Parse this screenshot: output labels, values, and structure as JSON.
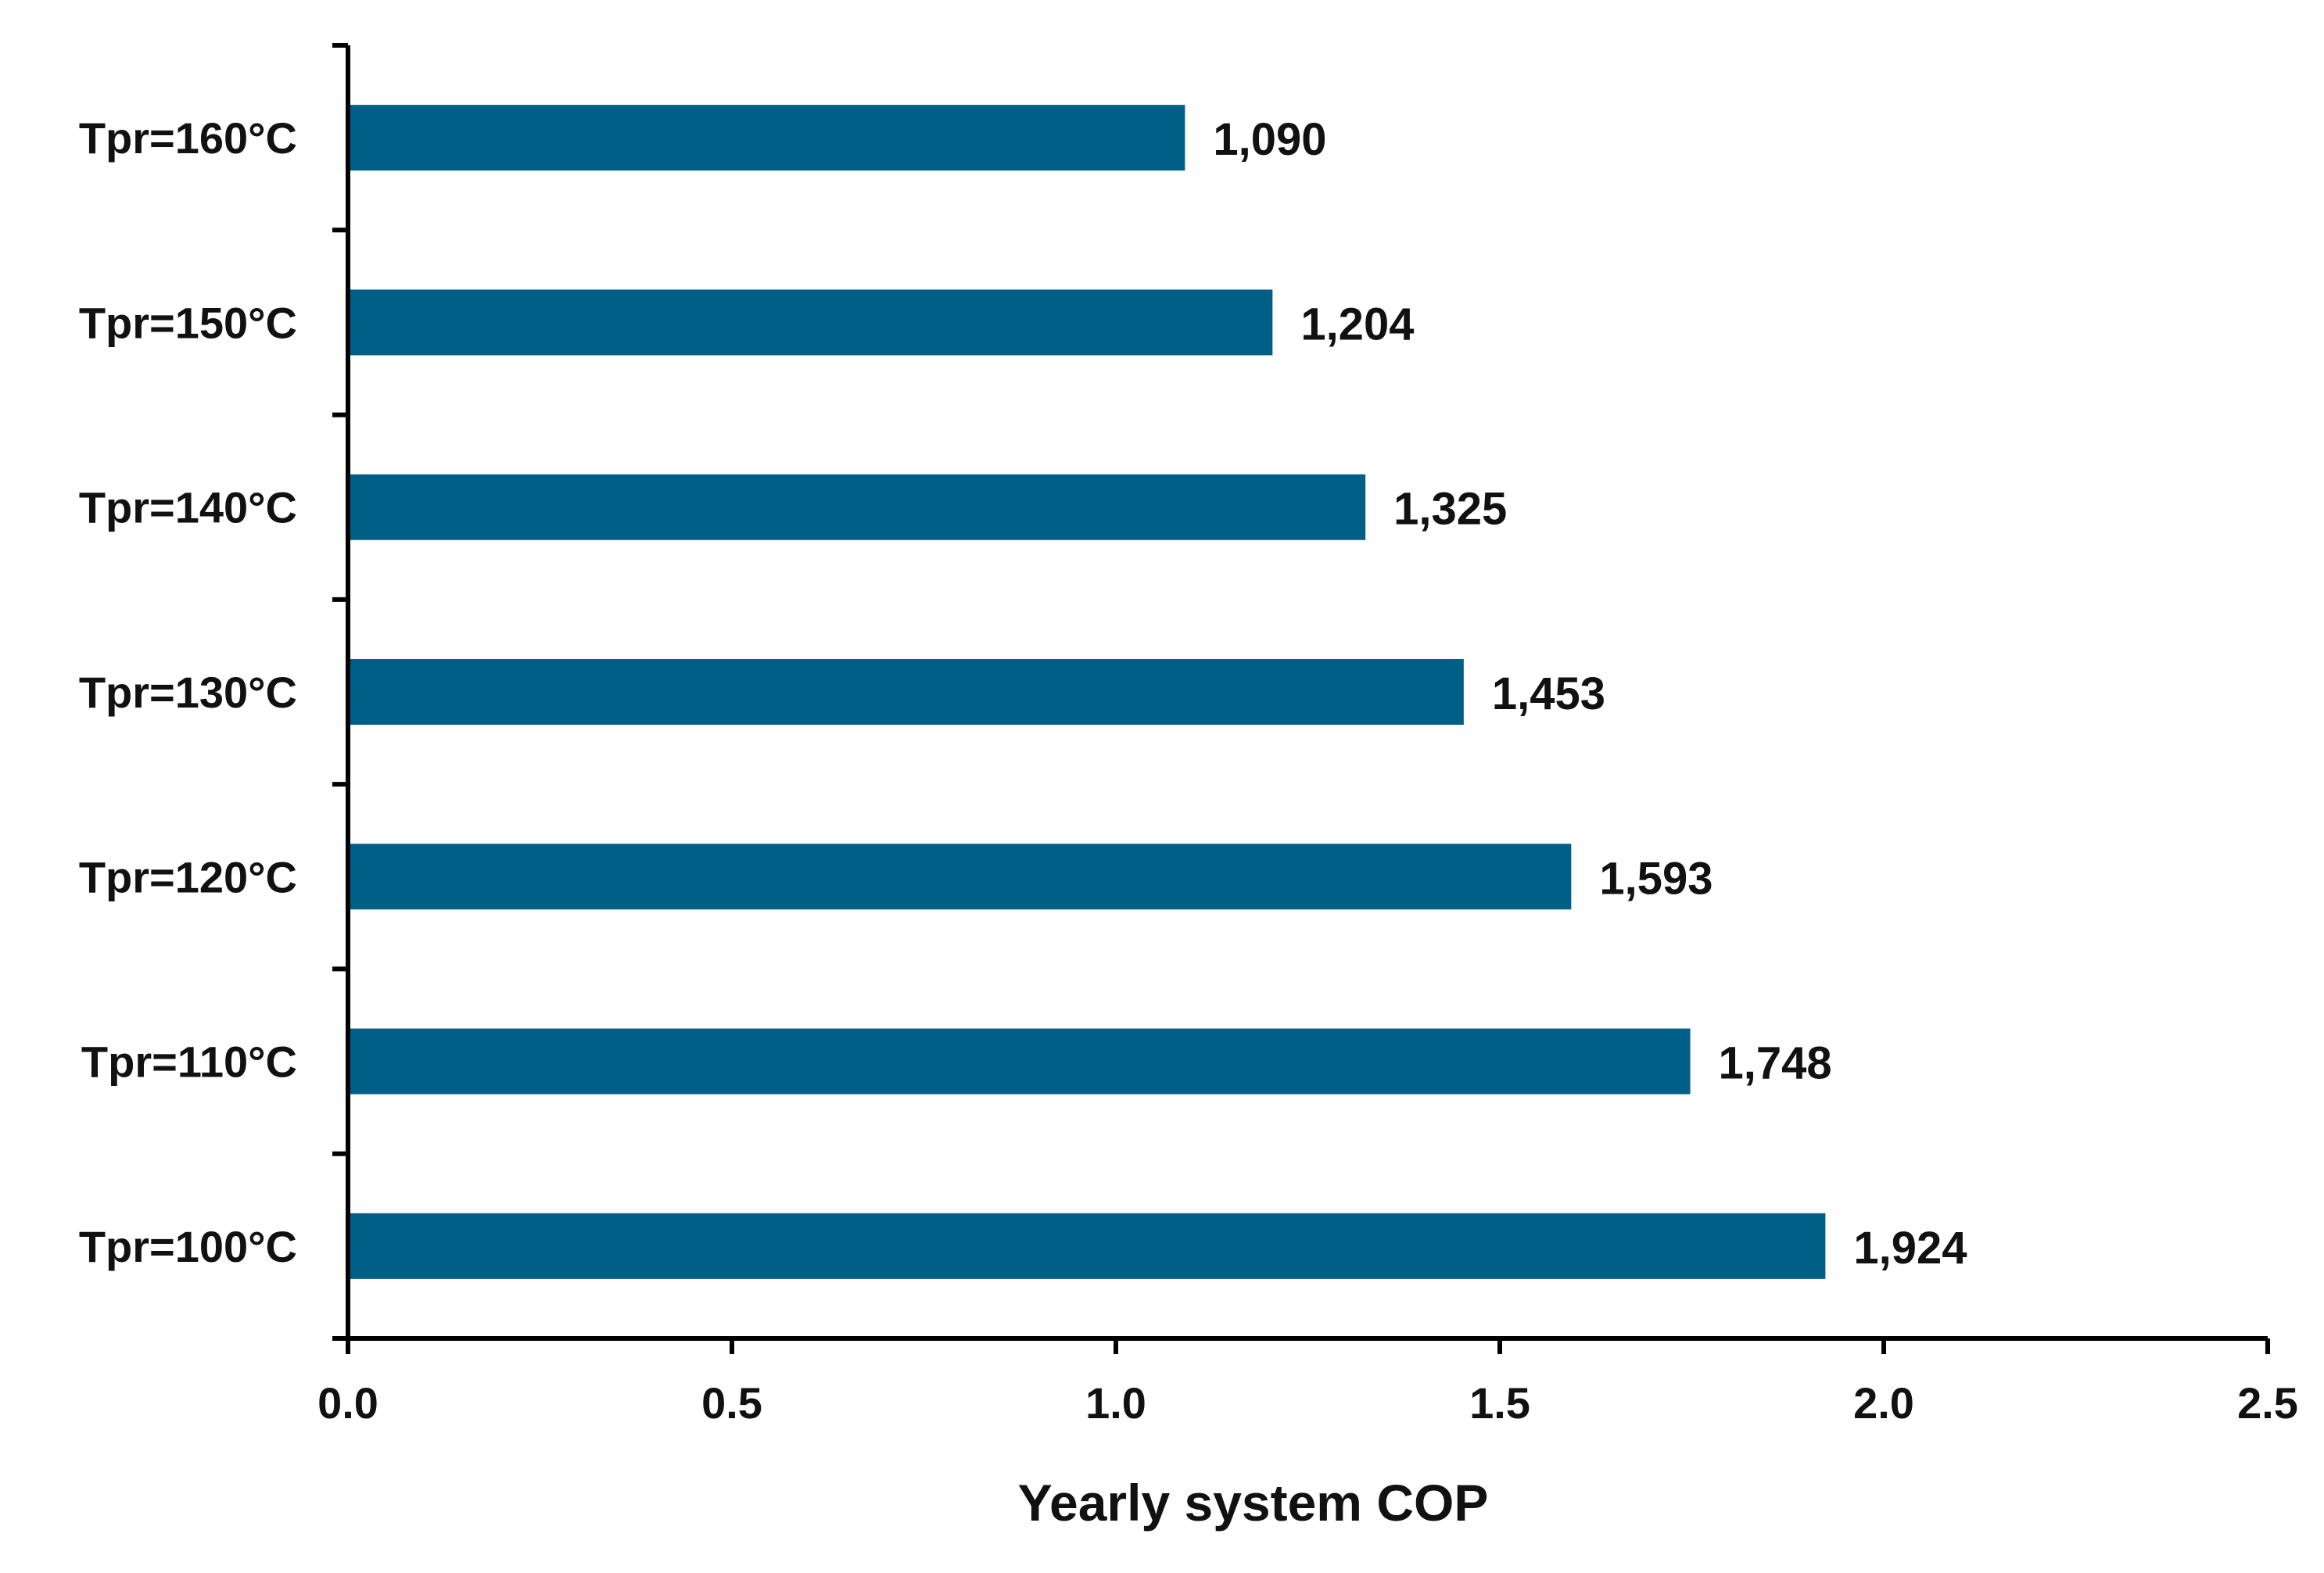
{
  "chart_data": {
    "type": "bar",
    "orientation": "horizontal",
    "categories": [
      "Tpr=160°C",
      "Tpr=150°C",
      "Tpr=140°C",
      "Tpr=130°C",
      "Tpr=120°C",
      "Tpr=110°C",
      "Tpr=100°C"
    ],
    "values": [
      1.09,
      1.204,
      1.325,
      1.453,
      1.593,
      1.748,
      1.924
    ],
    "data_labels": [
      "1,090",
      "1,204",
      "1,325",
      "1,453",
      "1,593",
      "1,748",
      "1,924"
    ],
    "title": "",
    "xlabel": "Yearly system COP",
    "ylabel": "",
    "xlim": [
      0,
      2.5
    ],
    "xticks": [
      0,
      0.5,
      1.0,
      1.5,
      2.0,
      2.5
    ],
    "xtick_labels": [
      "0.0",
      "0.5",
      "1.0",
      "1.5",
      "2.0",
      "2.5"
    ],
    "grid": false,
    "legend": "none",
    "bar_color": "#005f86",
    "axis_color": "#000000"
  }
}
